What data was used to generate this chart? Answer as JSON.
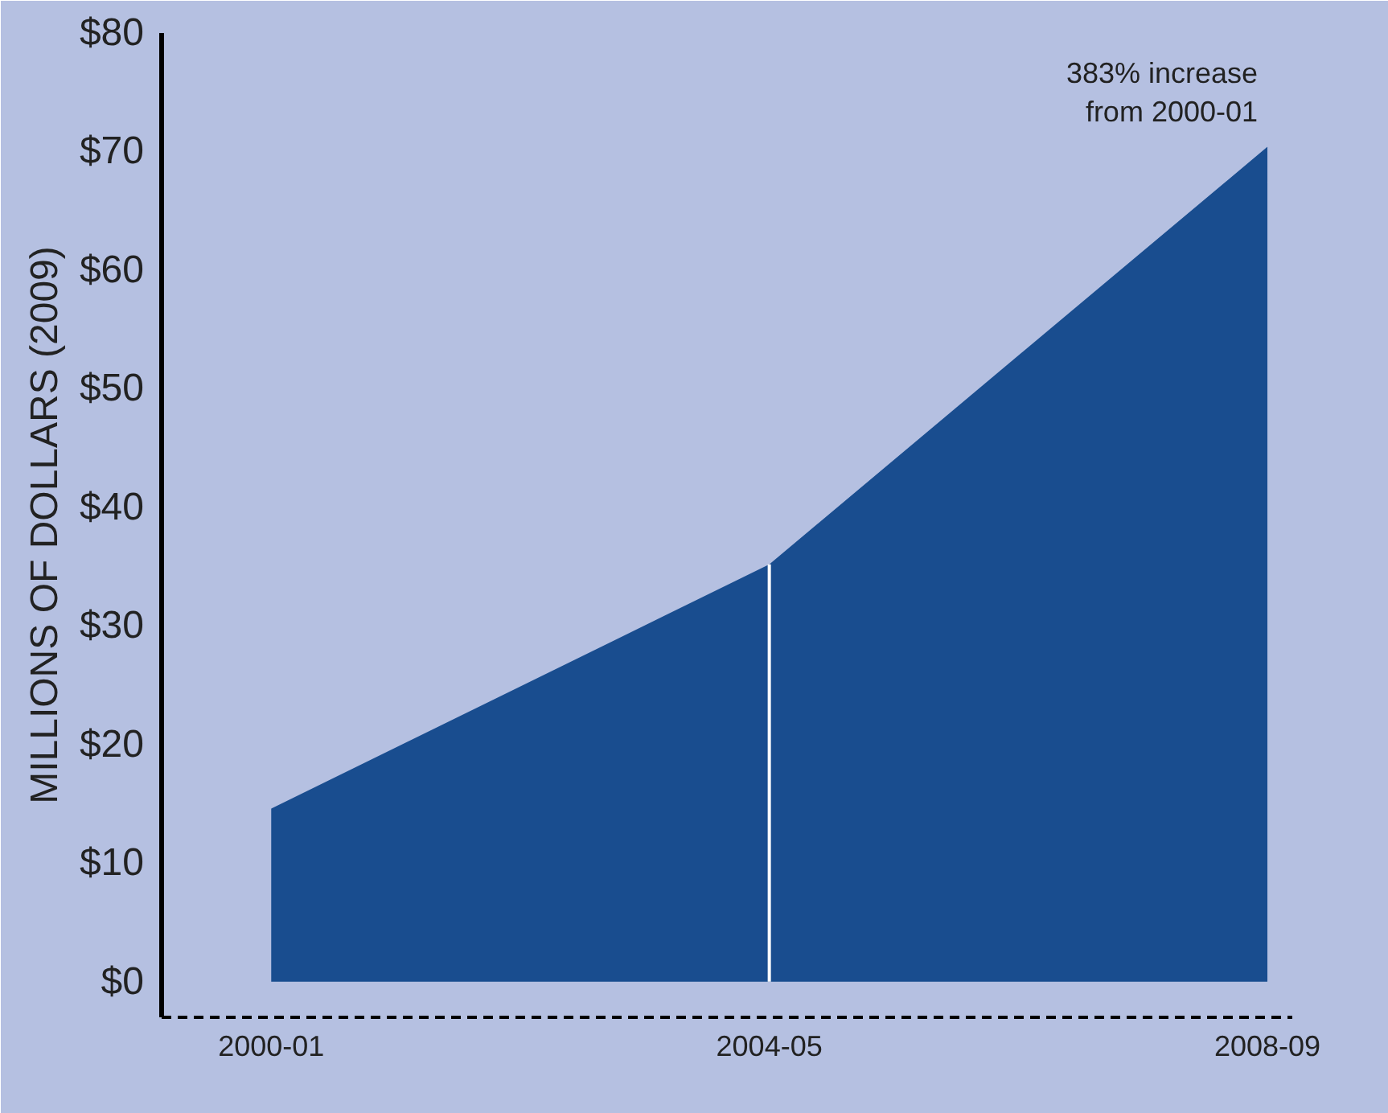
{
  "chart_data": {
    "type": "area",
    "categories": [
      "2000-01",
      "2004-05",
      "2008-09"
    ],
    "series": [
      {
        "color": "#194d8f",
        "values": [
          14.6,
          35.2,
          70.4
        ]
      }
    ],
    "ylabel": "MILLIONS OF DOLLARS (2009)",
    "ylim": [
      -3,
      80
    ],
    "yticks": [
      {
        "value": 0,
        "label": "$0"
      },
      {
        "value": 10,
        "label": "$10"
      },
      {
        "value": 20,
        "label": "$20"
      },
      {
        "value": 30,
        "label": "$30"
      },
      {
        "value": 40,
        "label": "$40"
      },
      {
        "value": 50,
        "label": "$50"
      },
      {
        "value": 60,
        "label": "$60"
      },
      {
        "value": 70,
        "label": "$70"
      },
      {
        "value": 80,
        "label": "$80"
      }
    ],
    "annotations": [
      {
        "text": "383% increase\nfrom 2000-01",
        "x": "2008-09",
        "y": 70.4
      }
    ],
    "ref_lines": [
      {
        "axis": "x",
        "value": "2004-05",
        "color": "#ffffff"
      }
    ],
    "grid": false
  }
}
